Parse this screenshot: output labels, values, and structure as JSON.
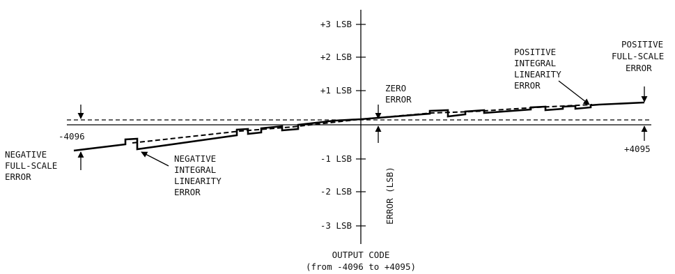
{
  "axis": {
    "y_ticks": [
      "+3 LSB",
      "+2 LSB",
      "+1 LSB",
      "-1 LSB",
      "-2 LSB",
      "-3 LSB"
    ],
    "y_label": "ERROR (LSB)",
    "x_label_line1": "OUTPUT CODE",
    "x_label_line2": "(from -4096 to +4095)"
  },
  "endpoints": {
    "left_code": "-4096",
    "right_code": "+4095"
  },
  "annotations": {
    "zero_error": [
      "ZERO",
      "ERROR"
    ],
    "negative_full_scale": [
      "NEGATIVE",
      "FULL-SCALE",
      "ERROR"
    ],
    "negative_integral": [
      "NEGATIVE",
      "INTEGRAL",
      "LINEARITY",
      "ERROR"
    ],
    "positive_integral": [
      "POSITIVE",
      "INTEGRAL",
      "LINEARITY",
      "ERROR"
    ],
    "positive_full_scale": [
      "POSITIVE",
      "FULL-SCALE",
      "ERROR"
    ]
  },
  "colors": {
    "ink": "#000000",
    "background": "#ffffff"
  }
}
